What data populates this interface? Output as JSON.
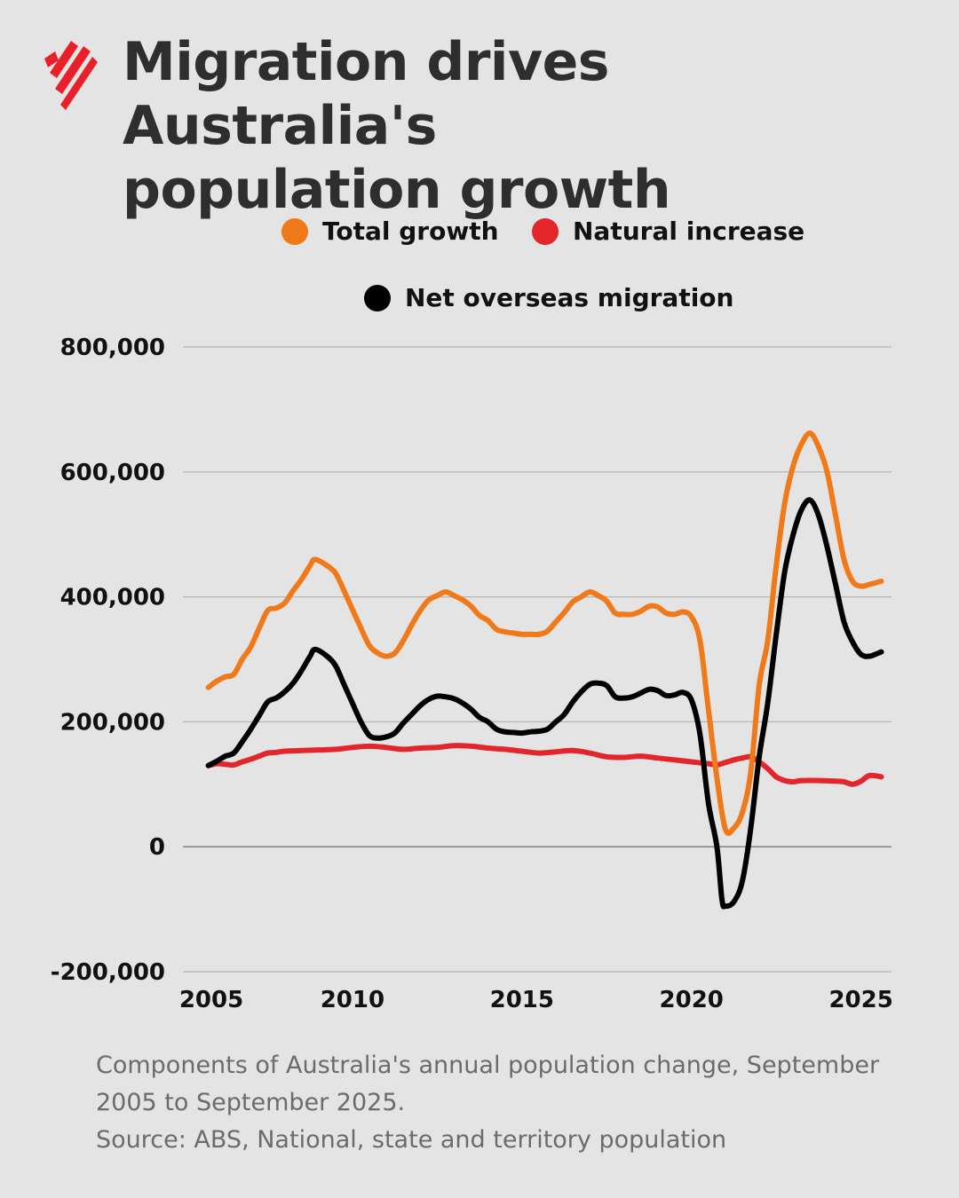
{
  "header": {
    "title_line1": "Migration drives Australia's",
    "title_line2": "population growth"
  },
  "brand": {
    "logo_icon": "sbs-logo-icon",
    "logo_color": "#e8202a"
  },
  "caption": {
    "line1": "Components of Australia's annual population change, September",
    "line2": "2005 to September 2025.",
    "line3": "Source: ABS, National, state and territory population"
  },
  "chart_data": {
    "type": "line",
    "title": "Migration drives Australia's population growth",
    "xlabel": "",
    "ylabel": "",
    "xlim": [
      2005,
      2025.9
    ],
    "ylim": [
      -200000,
      800000
    ],
    "x_ticks": [
      2005,
      2010,
      2015,
      2020,
      2025
    ],
    "x_tick_labels": [
      "2005",
      "2010",
      "2015",
      "2020",
      "2025"
    ],
    "y_ticks": [
      800000,
      600000,
      400000,
      200000,
      0,
      -200000
    ],
    "y_tick_labels": [
      "800,000",
      "600,000",
      "400,000",
      "200,000",
      "0",
      "-200,000"
    ],
    "grid": "horizontal",
    "legend_position": "top",
    "series": [
      {
        "name": "Total growth",
        "color": "#f07a1a",
        "points": [
          [
            2005.75,
            255000
          ],
          [
            2006.0,
            265000
          ],
          [
            2006.25,
            272000
          ],
          [
            2006.5,
            276000
          ],
          [
            2006.75,
            300000
          ],
          [
            2007.0,
            320000
          ],
          [
            2007.25,
            350000
          ],
          [
            2007.5,
            378000
          ],
          [
            2007.75,
            382000
          ],
          [
            2008.0,
            390000
          ],
          [
            2008.25,
            410000
          ],
          [
            2008.5,
            428000
          ],
          [
            2008.75,
            450000
          ],
          [
            2008.9,
            460000
          ],
          [
            2009.25,
            450000
          ],
          [
            2009.5,
            438000
          ],
          [
            2009.75,
            410000
          ],
          [
            2010.0,
            380000
          ],
          [
            2010.25,
            350000
          ],
          [
            2010.5,
            322000
          ],
          [
            2010.75,
            310000
          ],
          [
            2011.0,
            305000
          ],
          [
            2011.25,
            310000
          ],
          [
            2011.5,
            330000
          ],
          [
            2011.75,
            355000
          ],
          [
            2012.0,
            378000
          ],
          [
            2012.25,
            395000
          ],
          [
            2012.5,
            402000
          ],
          [
            2012.75,
            408000
          ],
          [
            2013.0,
            402000
          ],
          [
            2013.25,
            395000
          ],
          [
            2013.5,
            385000
          ],
          [
            2013.75,
            370000
          ],
          [
            2014.0,
            362000
          ],
          [
            2014.25,
            348000
          ],
          [
            2014.5,
            344000
          ],
          [
            2014.75,
            342000
          ],
          [
            2015.0,
            340000
          ],
          [
            2015.25,
            340000
          ],
          [
            2015.5,
            340000
          ],
          [
            2015.75,
            345000
          ],
          [
            2016.0,
            360000
          ],
          [
            2016.25,
            375000
          ],
          [
            2016.5,
            392000
          ],
          [
            2016.75,
            400000
          ],
          [
            2017.0,
            408000
          ],
          [
            2017.25,
            402000
          ],
          [
            2017.5,
            393000
          ],
          [
            2017.75,
            374000
          ],
          [
            2018.0,
            372000
          ],
          [
            2018.25,
            372000
          ],
          [
            2018.5,
            377000
          ],
          [
            2018.75,
            385000
          ],
          [
            2019.0,
            384000
          ],
          [
            2019.25,
            374000
          ],
          [
            2019.5,
            372000
          ],
          [
            2019.75,
            376000
          ],
          [
            2020.0,
            368000
          ],
          [
            2020.25,
            330000
          ],
          [
            2020.5,
            220000
          ],
          [
            2020.75,
            110000
          ],
          [
            2021.0,
            28000
          ],
          [
            2021.25,
            30000
          ],
          [
            2021.5,
            55000
          ],
          [
            2021.75,
            120000
          ],
          [
            2022.0,
            260000
          ],
          [
            2022.25,
            330000
          ],
          [
            2022.5,
            450000
          ],
          [
            2022.75,
            550000
          ],
          [
            2023.0,
            610000
          ],
          [
            2023.25,
            645000
          ],
          [
            2023.5,
            662000
          ],
          [
            2023.75,
            640000
          ],
          [
            2024.0,
            600000
          ],
          [
            2024.25,
            530000
          ],
          [
            2024.5,
            460000
          ],
          [
            2024.75,
            425000
          ],
          [
            2025.0,
            417000
          ],
          [
            2025.25,
            420000
          ],
          [
            2025.6,
            425000
          ]
        ]
      },
      {
        "name": "Natural increase",
        "color": "#e2262c",
        "points": [
          [
            2005.75,
            130000
          ],
          [
            2006.0,
            133000
          ],
          [
            2006.25,
            132000
          ],
          [
            2006.5,
            131000
          ],
          [
            2006.75,
            136000
          ],
          [
            2007.0,
            140000
          ],
          [
            2007.25,
            145000
          ],
          [
            2007.5,
            150000
          ],
          [
            2007.75,
            151000
          ],
          [
            2008.0,
            153000
          ],
          [
            2008.5,
            154000
          ],
          [
            2009.0,
            155000
          ],
          [
            2009.5,
            156000
          ],
          [
            2010.0,
            159000
          ],
          [
            2010.5,
            161000
          ],
          [
            2011.0,
            159000
          ],
          [
            2011.5,
            156000
          ],
          [
            2012.0,
            158000
          ],
          [
            2012.5,
            159000
          ],
          [
            2013.0,
            162000
          ],
          [
            2013.5,
            161000
          ],
          [
            2014.0,
            158000
          ],
          [
            2014.5,
            156000
          ],
          [
            2015.0,
            153000
          ],
          [
            2015.5,
            150000
          ],
          [
            2016.0,
            152000
          ],
          [
            2016.5,
            154000
          ],
          [
            2017.0,
            150000
          ],
          [
            2017.5,
            144000
          ],
          [
            2018.0,
            143000
          ],
          [
            2018.5,
            145000
          ],
          [
            2019.0,
            142000
          ],
          [
            2019.5,
            139000
          ],
          [
            2020.0,
            136000
          ],
          [
            2020.5,
            133000
          ],
          [
            2020.75,
            131000
          ],
          [
            2021.0,
            135000
          ],
          [
            2021.25,
            139000
          ],
          [
            2021.5,
            142000
          ],
          [
            2021.75,
            144000
          ],
          [
            2022.0,
            136000
          ],
          [
            2022.25,
            125000
          ],
          [
            2022.5,
            112000
          ],
          [
            2022.75,
            106000
          ],
          [
            2023.0,
            104000
          ],
          [
            2023.25,
            106000
          ],
          [
            2023.75,
            106000
          ],
          [
            2024.25,
            105000
          ],
          [
            2024.5,
            104000
          ],
          [
            2024.75,
            100000
          ],
          [
            2025.0,
            105000
          ],
          [
            2025.25,
            114000
          ],
          [
            2025.6,
            112000
          ]
        ]
      },
      {
        "name": "Net overseas migration",
        "color": "#000000",
        "points": [
          [
            2005.75,
            130000
          ],
          [
            2006.0,
            137000
          ],
          [
            2006.25,
            145000
          ],
          [
            2006.5,
            150000
          ],
          [
            2006.75,
            168000
          ],
          [
            2007.0,
            188000
          ],
          [
            2007.25,
            210000
          ],
          [
            2007.5,
            232000
          ],
          [
            2007.75,
            238000
          ],
          [
            2008.0,
            248000
          ],
          [
            2008.25,
            262000
          ],
          [
            2008.5,
            282000
          ],
          [
            2008.75,
            305000
          ],
          [
            2008.9,
            316000
          ],
          [
            2009.25,
            305000
          ],
          [
            2009.5,
            290000
          ],
          [
            2009.75,
            260000
          ],
          [
            2010.0,
            230000
          ],
          [
            2010.25,
            200000
          ],
          [
            2010.5,
            178000
          ],
          [
            2010.75,
            174000
          ],
          [
            2011.0,
            176000
          ],
          [
            2011.25,
            182000
          ],
          [
            2011.5,
            198000
          ],
          [
            2011.75,
            212000
          ],
          [
            2012.0,
            226000
          ],
          [
            2012.25,
            236000
          ],
          [
            2012.5,
            241000
          ],
          [
            2012.75,
            240000
          ],
          [
            2013.0,
            237000
          ],
          [
            2013.25,
            230000
          ],
          [
            2013.5,
            220000
          ],
          [
            2013.75,
            207000
          ],
          [
            2014.0,
            200000
          ],
          [
            2014.25,
            188000
          ],
          [
            2014.5,
            184000
          ],
          [
            2014.75,
            183000
          ],
          [
            2015.0,
            182000
          ],
          [
            2015.25,
            184000
          ],
          [
            2015.5,
            185000
          ],
          [
            2015.75,
            188000
          ],
          [
            2016.0,
            200000
          ],
          [
            2016.25,
            212000
          ],
          [
            2016.5,
            232000
          ],
          [
            2016.75,
            248000
          ],
          [
            2017.0,
            260000
          ],
          [
            2017.25,
            262000
          ],
          [
            2017.5,
            258000
          ],
          [
            2017.75,
            240000
          ],
          [
            2018.0,
            238000
          ],
          [
            2018.25,
            240000
          ],
          [
            2018.5,
            246000
          ],
          [
            2018.75,
            252000
          ],
          [
            2019.0,
            250000
          ],
          [
            2019.25,
            242000
          ],
          [
            2019.5,
            243000
          ],
          [
            2019.75,
            247000
          ],
          [
            2020.0,
            235000
          ],
          [
            2020.25,
            180000
          ],
          [
            2020.5,
            70000
          ],
          [
            2020.75,
            0
          ],
          [
            2020.9,
            -85000
          ],
          [
            2021.0,
            -95000
          ],
          [
            2021.25,
            -88000
          ],
          [
            2021.5,
            -55000
          ],
          [
            2021.75,
            30000
          ],
          [
            2022.0,
            145000
          ],
          [
            2022.25,
            230000
          ],
          [
            2022.5,
            340000
          ],
          [
            2022.75,
            440000
          ],
          [
            2023.0,
            500000
          ],
          [
            2023.25,
            540000
          ],
          [
            2023.5,
            555000
          ],
          [
            2023.75,
            530000
          ],
          [
            2024.0,
            480000
          ],
          [
            2024.25,
            420000
          ],
          [
            2024.5,
            360000
          ],
          [
            2024.75,
            328000
          ],
          [
            2025.0,
            308000
          ],
          [
            2025.25,
            305000
          ],
          [
            2025.6,
            312000
          ]
        ]
      }
    ]
  }
}
